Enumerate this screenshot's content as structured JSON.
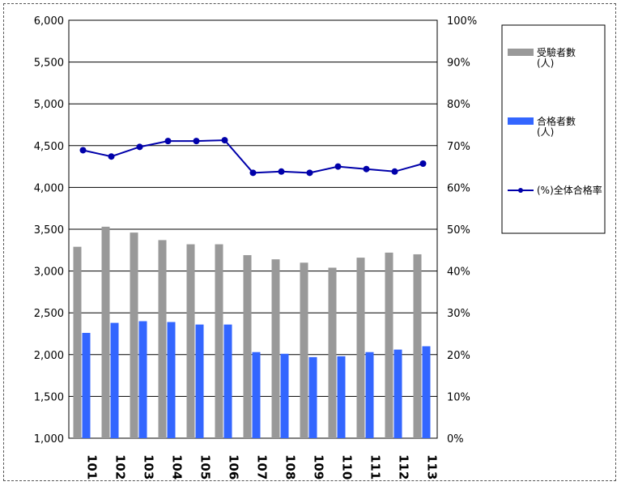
{
  "chart_data": {
    "type": "bar",
    "title": "",
    "xlabel": "",
    "ylabel": "",
    "categories": [
      "101",
      "102",
      "103",
      "104",
      "105",
      "106",
      "107",
      "108",
      "109",
      "110",
      "111",
      "112",
      "113"
    ],
    "y_left": {
      "ylim": [
        1000,
        6000
      ],
      "ticks": [
        "1,000",
        "1,500",
        "2,000",
        "2,500",
        "3,000",
        "3,500",
        "4,000",
        "4,500",
        "5,000",
        "5,500",
        "6,000"
      ]
    },
    "y_right": {
      "ylim": [
        0,
        1
      ],
      "ticks": [
        "0%",
        "10%",
        "20%",
        "30%",
        "40%",
        "50%",
        "60%",
        "70%",
        "80%",
        "90%",
        "100%"
      ]
    },
    "series": [
      {
        "name": "受驗者數\n(人)",
        "type": "bar",
        "axis": "left",
        "color": "#999999",
        "values": [
          3290,
          3530,
          3460,
          3370,
          3320,
          3320,
          3190,
          3140,
          3100,
          3040,
          3160,
          3220,
          3200
        ]
      },
      {
        "name": "合格者數\n(人)",
        "type": "bar",
        "axis": "left",
        "color": "#3366ff",
        "values": [
          2260,
          2380,
          2400,
          2390,
          2360,
          2360,
          2030,
          2010,
          1970,
          1980,
          2030,
          2060,
          2100
        ]
      },
      {
        "name": "(%)全体合格率",
        "type": "line",
        "axis": "right",
        "color": "#0000aa",
        "values": [
          0.689,
          0.674,
          0.697,
          0.711,
          0.711,
          0.713,
          0.635,
          0.638,
          0.635,
          0.65,
          0.644,
          0.638,
          0.657
        ]
      }
    ],
    "grid": true,
    "legend_position": "right"
  }
}
